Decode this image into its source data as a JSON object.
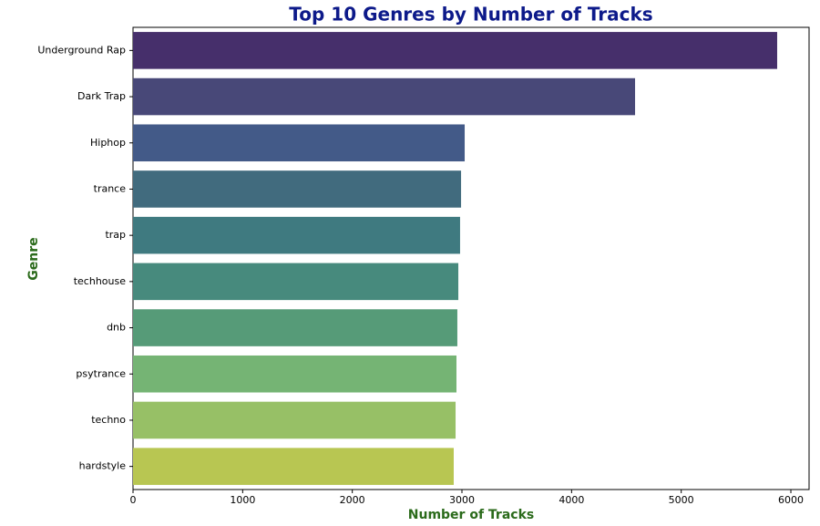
{
  "chart_data": {
    "type": "barh",
    "title": "Top 10 Genres by Number of Tracks",
    "xlabel": "Number of Tracks",
    "ylabel": "Genre",
    "categories": [
      "Underground Rap",
      "Dark Trap",
      "Hiphop",
      "trance",
      "trap",
      "techhouse",
      "dnb",
      "psytrance",
      "techno",
      "hardstyle"
    ],
    "values": [
      5875,
      4579,
      3025,
      2992,
      2983,
      2967,
      2958,
      2950,
      2942,
      2925
    ],
    "colors": [
      "#462f6b",
      "#484878",
      "#435a88",
      "#416b7e",
      "#3f7a80",
      "#478a7d",
      "#569b78",
      "#75b474",
      "#97c066",
      "#b8c652"
    ],
    "xlim": [
      0,
      6166
    ],
    "xticks": [
      0,
      1000,
      2000,
      3000,
      4000,
      5000,
      6000
    ],
    "grid": false
  }
}
